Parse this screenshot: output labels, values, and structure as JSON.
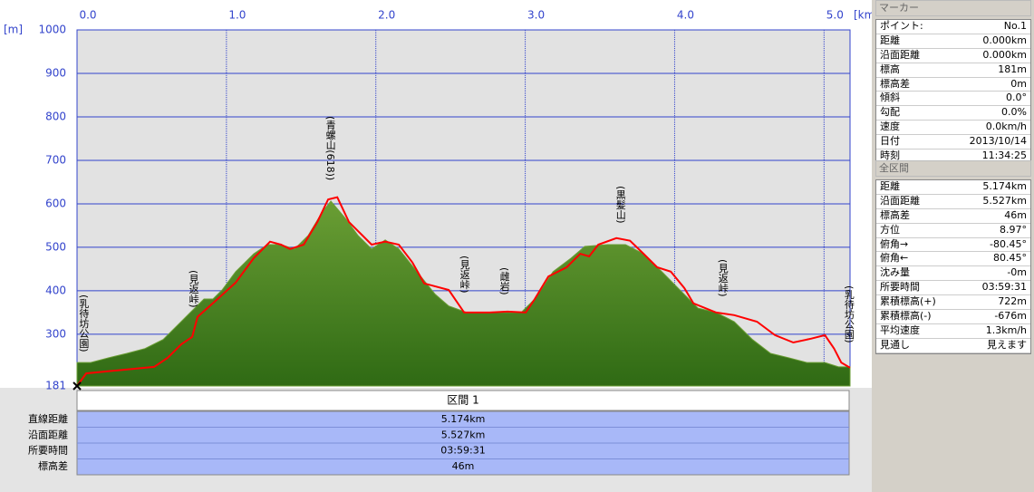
{
  "chart_data": {
    "type": "line",
    "xlabel": "[km]",
    "ylabel": "[m]",
    "xlim": [
      0,
      5.174
    ],
    "ylim": [
      181,
      1000
    ],
    "xticks": [
      {
        "value": 0,
        "label": "0.0"
      },
      {
        "value": 1,
        "label": "1.0"
      },
      {
        "value": 2,
        "label": "2.0"
      },
      {
        "value": 3,
        "label": "3.0"
      },
      {
        "value": 4,
        "label": "4.0"
      },
      {
        "value": 5,
        "label": "5.0"
      }
    ],
    "yticks": [
      181,
      300,
      400,
      500,
      600,
      700,
      800,
      900,
      1000
    ],
    "grid": true,
    "series": [
      {
        "color": "#6a9e34",
        "fill": true,
        "x": [
          0,
          0.091,
          0.212,
          0.334,
          0.455,
          0.576,
          0.667,
          0.758,
          0.85,
          0.91,
          0.971,
          1.062,
          1.183,
          1.274,
          1.365,
          1.456,
          1.547,
          1.638,
          1.699,
          1.79,
          1.881,
          1.972,
          2.063,
          2.154,
          2.275,
          2.397,
          2.488,
          2.609,
          2.761,
          2.973,
          3.064,
          3.186,
          3.307,
          3.398,
          3.55,
          3.671,
          3.792,
          3.914,
          4.035,
          4.157,
          4.278,
          4.399,
          4.521,
          4.642,
          4.763,
          4.885,
          5.006,
          5.097,
          5.174
        ],
        "values": [
          235,
          235,
          246,
          256,
          267,
          288,
          319,
          350,
          381,
          381,
          402,
          444,
          485,
          506,
          506,
          496,
          527,
          579,
          606,
          569,
          527,
          496,
          517,
          496,
          444,
          392,
          365,
          350,
          350,
          350,
          381,
          444,
          475,
          502,
          506,
          506,
          485,
          444,
          402,
          360,
          350,
          329,
          288,
          256,
          246,
          235,
          235,
          225,
          225
        ]
      },
      {
        "color": "#ff0000",
        "fill": false,
        "x": [
          0,
          0.061,
          0.273,
          0.516,
          0.607,
          0.698,
          0.771,
          0.807,
          0.941,
          1.062,
          1.183,
          1.292,
          1.365,
          1.426,
          1.517,
          1.608,
          1.681,
          1.742,
          1.82,
          1.911,
          1.972,
          2.063,
          2.154,
          2.245,
          2.324,
          2.488,
          2.591,
          2.761,
          2.882,
          3.004,
          3.064,
          3.155,
          3.277,
          3.368,
          3.428,
          3.489,
          3.61,
          3.701,
          3.792,
          3.883,
          3.974,
          4.065,
          4.126,
          4.278,
          4.399,
          4.551,
          4.672,
          4.794,
          4.915,
          5.006,
          5.067,
          5.115,
          5.174
        ],
        "values": [
          181,
          210,
          217,
          225,
          246,
          277,
          294,
          340,
          381,
          419,
          475,
          513,
          506,
          496,
          506,
          558,
          610,
          615,
          558,
          527,
          506,
          513,
          506,
          465,
          417,
          402,
          350,
          350,
          352,
          350,
          381,
          433,
          454,
          485,
          479,
          506,
          521,
          515,
          485,
          454,
          444,
          406,
          371,
          350,
          344,
          329,
          298,
          281,
          290,
          298,
          267,
          235,
          223
        ]
      }
    ],
    "annotations": [
      {
        "text": "(乳待坊公園)",
        "x": 0.042
      },
      {
        "text": "(見返峠)",
        "x": 0.777
      },
      {
        "text": "(青螺山(618))",
        "x": 1.693
      },
      {
        "text": "(見返峠)",
        "x": 2.591
      },
      {
        "text": "(雌岩)",
        "x": 2.858
      },
      {
        "text": "(黒髪山)",
        "x": 3.635
      },
      {
        "text": "(見返峠)",
        "x": 4.32
      },
      {
        "text": "(乳待坊公園)",
        "x": 5.164
      }
    ]
  },
  "section": {
    "title": "区間 1",
    "rows": [
      [
        "直線距離",
        "5.174km"
      ],
      [
        "沿面距離",
        "5.527km"
      ],
      [
        "所要時間",
        "03:59:31"
      ],
      [
        "標高差",
        "46m"
      ]
    ]
  },
  "marker_panel": {
    "title": "マーカー",
    "rows": [
      [
        "ポイント:",
        "No.1"
      ],
      [
        "距離",
        "0.000km"
      ],
      [
        "沿面距離",
        "0.000km"
      ],
      [
        "標高",
        "181m"
      ],
      [
        "標高差",
        "0m"
      ],
      [
        "傾斜",
        "0.0°"
      ],
      [
        "勾配",
        "0.0%"
      ],
      [
        "速度",
        "0.0km/h"
      ],
      [
        "日付",
        "2013/10/14"
      ],
      [
        "時刻",
        "11:34:25"
      ]
    ]
  },
  "total_panel": {
    "title": "全区間",
    "rows": [
      [
        "距離",
        "5.174km"
      ],
      [
        "沿面距離",
        "5.527km"
      ],
      [
        "標高差",
        "46m"
      ],
      [
        "方位",
        "8.97°"
      ],
      [
        "俯角→",
        "-80.45°"
      ],
      [
        "俯角←",
        "80.45°"
      ],
      [
        "沈み量",
        "-0m"
      ],
      [
        "所要時間",
        "03:59:31"
      ],
      [
        "累積標高(+)",
        "722m"
      ],
      [
        "累積標高(-)",
        "-676m"
      ],
      [
        "平均速度",
        "1.3km/h"
      ],
      [
        "見通し",
        "見えます"
      ]
    ]
  }
}
